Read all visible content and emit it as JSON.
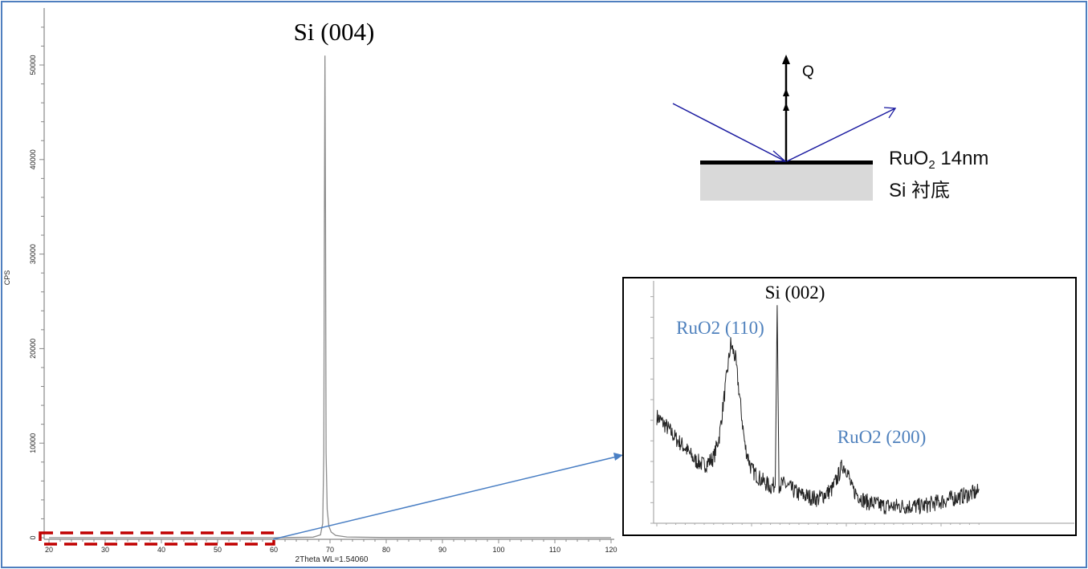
{
  "chart_data": [
    {
      "type": "line",
      "title": "",
      "annotations": [
        {
          "text": "Si (004)",
          "x": 69.1
        }
      ],
      "xlabel": "2Theta WL=1.54060",
      "ylabel": "CPS",
      "xlim": [
        20,
        120
      ],
      "ylim": [
        0,
        55000
      ],
      "xticks": [
        20,
        30,
        40,
        50,
        60,
        70,
        80,
        90,
        100,
        110,
        120
      ],
      "yticks": [
        0,
        10000,
        20000,
        30000,
        40000,
        50000
      ],
      "grid": false,
      "color": "#8c8c8c",
      "x": [
        20,
        40,
        60,
        67,
        68.3,
        68.7,
        68.9,
        69.0,
        69.1,
        69.2,
        69.3,
        69.5,
        69.8,
        70.2,
        71,
        73,
        80,
        120
      ],
      "y": [
        0,
        0,
        0,
        60,
        300,
        1500,
        9000,
        34000,
        51000,
        34000,
        9000,
        3000,
        1200,
        600,
        250,
        80,
        20,
        0
      ],
      "highlight_region": {
        "x": [
          20,
          60
        ],
        "color": "#c00000",
        "style": "dashed"
      }
    },
    {
      "type": "line",
      "title": "",
      "note_inset_of": "highlight_region",
      "xlim": [
        20,
        54
      ],
      "ylim": [
        0,
        100
      ],
      "grid": false,
      "color": "#222222",
      "annotations": [
        {
          "text": "Si (002)",
          "x": 32.7,
          "color": "#000000"
        },
        {
          "text": "RuO2 (110)",
          "x": 27.8,
          "color": "#4f81bd"
        },
        {
          "text": "RuO2 (200)",
          "x": 39.6,
          "color": "#4f81bd"
        }
      ],
      "x": [
        20,
        21,
        22,
        23,
        24,
        25,
        26,
        26.6,
        27.2,
        27.8,
        28.3,
        28.8,
        29.3,
        30,
        31,
        32,
        32.5,
        32.7,
        32.9,
        33.5,
        35,
        37,
        38.5,
        39.2,
        39.6,
        40.1,
        40.6,
        42,
        44,
        46,
        48,
        50,
        52,
        54
      ],
      "y": [
        44,
        40,
        35,
        31,
        26,
        24,
        27,
        36,
        55,
        74,
        68,
        50,
        32,
        22,
        18,
        15,
        16,
        90,
        16,
        16,
        12,
        10,
        14,
        20,
        24,
        22,
        14,
        9,
        7,
        7,
        7,
        9,
        11,
        13
      ]
    }
  ],
  "diagram": {
    "q_label": "Q",
    "film_label": "RuO",
    "film_sub": "2",
    "film_thickness": " 14nm",
    "substrate_label": "Si 衬底",
    "beam_color": "#1a1aa0",
    "substrate_color": "#d9d9d9"
  },
  "colors": {
    "frame": "#4f7fbf",
    "arrow": "#4a7fc4"
  }
}
